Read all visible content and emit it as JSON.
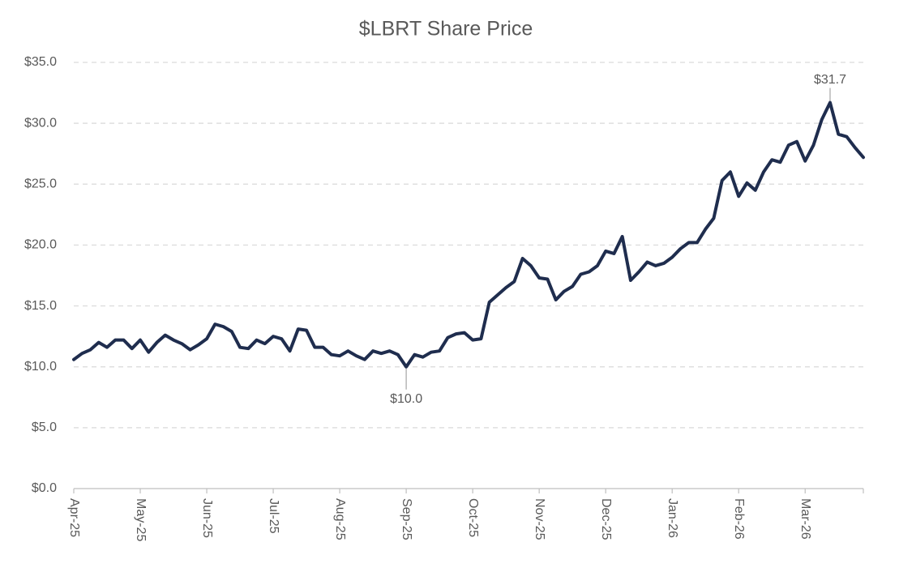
{
  "chart_data": {
    "type": "line",
    "title": "$LBRT Share Price",
    "categories": [
      "Apr-25",
      null,
      null,
      null,
      null,
      null,
      null,
      null,
      "May-25",
      null,
      null,
      null,
      null,
      null,
      null,
      null,
      "Jun-25",
      null,
      null,
      null,
      null,
      null,
      null,
      null,
      "Jul-25",
      null,
      null,
      null,
      null,
      null,
      null,
      null,
      "Aug-25",
      null,
      null,
      null,
      null,
      null,
      null,
      null,
      "Sep-25",
      null,
      null,
      null,
      null,
      null,
      null,
      null,
      "Oct-25",
      null,
      null,
      null,
      null,
      null,
      null,
      null,
      "Nov-25",
      null,
      null,
      null,
      null,
      null,
      null,
      null,
      "Dec-25",
      null,
      null,
      null,
      null,
      null,
      null,
      null,
      "Jan-26",
      null,
      null,
      null,
      null,
      null,
      null,
      null,
      "Feb-26",
      null,
      null,
      null,
      null,
      null,
      null,
      null,
      "Mar-26",
      null,
      null,
      null,
      null,
      null,
      null,
      null
    ],
    "series": [
      {
        "color": "#1f2d4e",
        "values": [
          10.6,
          11.1,
          11.4,
          12.0,
          11.6,
          12.2,
          12.2,
          11.5,
          12.2,
          11.2,
          12.0,
          12.6,
          12.2,
          11.9,
          11.4,
          11.8,
          12.3,
          13.5,
          13.3,
          12.9,
          11.6,
          11.5,
          12.2,
          11.9,
          12.5,
          12.3,
          11.3,
          13.1,
          13.0,
          11.6,
          11.6,
          11.0,
          10.9,
          11.3,
          10.9,
          10.6,
          11.3,
          11.1,
          11.3,
          11.0,
          10.0,
          11.0,
          10.8,
          11.2,
          11.3,
          12.4,
          12.7,
          12.8,
          12.2,
          12.3,
          15.3,
          15.9,
          16.5,
          17.0,
          18.9,
          18.3,
          17.3,
          17.2,
          15.5,
          16.2,
          16.6,
          17.6,
          17.8,
          18.3,
          19.5,
          19.3,
          20.7,
          17.1,
          17.8,
          18.6,
          18.3,
          18.5,
          19.0,
          19.7,
          20.2,
          20.2,
          21.3,
          22.2,
          25.3,
          26.0,
          24.0,
          25.1,
          24.5,
          26.0,
          27.0,
          26.8,
          28.2,
          28.5,
          26.9,
          28.2,
          30.3,
          31.7,
          29.1,
          28.9,
          28.0,
          27.2
        ],
        "value_labels": [
          null,
          null,
          null,
          null,
          null,
          null,
          null,
          null,
          null,
          null,
          null,
          null,
          null,
          null,
          null,
          null,
          null,
          null,
          null,
          null,
          null,
          null,
          null,
          null,
          null,
          null,
          null,
          null,
          null,
          null,
          null,
          null,
          null,
          null,
          null,
          null,
          null,
          null,
          null,
          null,
          "$10.0",
          null,
          null,
          null,
          null,
          null,
          null,
          null,
          null,
          null,
          null,
          null,
          null,
          null,
          null,
          null,
          null,
          null,
          null,
          null,
          null,
          null,
          null,
          null,
          null,
          null,
          null,
          null,
          null,
          null,
          null,
          null,
          null,
          null,
          null,
          null,
          null,
          null,
          null,
          null,
          null,
          null,
          null,
          null,
          null,
          null,
          null,
          null,
          null,
          null,
          null,
          "$31.7",
          null,
          null,
          null,
          null
        ]
      }
    ],
    "ylim": [
      0,
      35
    ],
    "yticks": [
      {
        "value": 0,
        "label": "$0.0"
      },
      {
        "value": 5,
        "label": "$5.0"
      },
      {
        "value": 10,
        "label": "$10.0"
      },
      {
        "value": 15,
        "label": "$15.0"
      },
      {
        "value": 20,
        "label": "$20.0"
      },
      {
        "value": 25,
        "label": "$25.0"
      },
      {
        "value": 30,
        "label": "$30.0"
      },
      {
        "value": 35,
        "label": "$35.0"
      }
    ],
    "grid": true
  }
}
